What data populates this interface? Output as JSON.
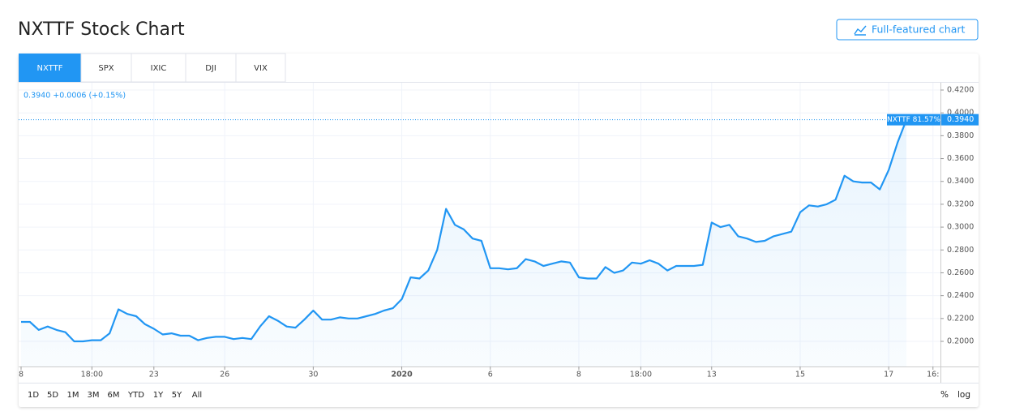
{
  "page": {
    "title": "NXTTF Stock Chart",
    "button": "Full-featured chart",
    "tabs": [
      "NXTTF",
      "SPX",
      "IXIC",
      "DJI",
      "VIX"
    ],
    "ranges": [
      "1D",
      "5D",
      "1M",
      "3M",
      "6M",
      "YTD",
      "1Y",
      "5Y",
      "All"
    ],
    "scale_options": [
      "%",
      "log"
    ]
  },
  "chart_data": {
    "type": "line",
    "legend_text": "0.3940 +0.0006 (+0.15%)",
    "badge": "NXTTF 81.57%",
    "price_line": {
      "value": 0.394,
      "label": "0.3940"
    },
    "color": "#2196f3",
    "categories": [
      "8",
      null,
      null,
      null,
      null,
      null,
      null,
      null,
      "18:00",
      null,
      null,
      null,
      null,
      null,
      null,
      "23",
      null,
      null,
      null,
      null,
      null,
      null,
      null,
      "26",
      null,
      null,
      null,
      null,
      null,
      null,
      null,
      null,
      null,
      "30",
      null,
      null,
      null,
      null,
      null,
      null,
      null,
      null,
      null,
      "2020",
      null,
      null,
      null,
      null,
      null,
      null,
      null,
      null,
      null,
      "6",
      null,
      null,
      null,
      null,
      null,
      null,
      null,
      null,
      null,
      "8",
      null,
      null,
      null,
      null,
      null,
      null,
      "18:00",
      null,
      null,
      null,
      null,
      null,
      null,
      null,
      "13",
      null,
      null,
      null,
      null,
      null,
      null,
      null,
      null,
      null,
      "15",
      null,
      null,
      null,
      null,
      null,
      null,
      null,
      null,
      null,
      "17",
      null,
      null,
      null,
      null,
      "16:"
    ],
    "values": [
      0.217,
      0.217,
      0.21,
      0.213,
      0.21,
      0.208,
      0.2,
      0.2,
      0.201,
      0.201,
      0.207,
      0.228,
      0.224,
      0.222,
      0.215,
      0.211,
      0.206,
      0.207,
      0.205,
      0.205,
      0.201,
      0.203,
      0.204,
      0.204,
      0.202,
      0.203,
      0.202,
      0.213,
      0.222,
      0.218,
      0.213,
      0.212,
      0.219,
      0.227,
      0.219,
      0.219,
      0.221,
      0.22,
      0.22,
      0.222,
      0.224,
      0.227,
      0.229,
      0.237,
      0.256,
      0.255,
      0.262,
      0.28,
      0.316,
      0.302,
      0.298,
      0.29,
      0.288,
      0.264,
      0.264,
      0.263,
      0.264,
      0.272,
      0.27,
      0.266,
      0.268,
      0.27,
      0.269,
      0.256,
      0.255,
      0.255,
      0.265,
      0.26,
      0.262,
      0.269,
      0.268,
      0.271,
      0.268,
      0.262,
      0.266,
      0.266,
      0.266,
      0.267,
      0.304,
      0.3,
      0.302,
      0.292,
      0.29,
      0.287,
      0.288,
      0.292,
      0.294,
      0.296,
      0.313,
      0.319,
      0.318,
      0.32,
      0.324,
      0.345,
      0.34,
      0.339,
      0.339,
      0.333,
      0.35,
      0.374,
      0.394,
      null,
      null,
      null
    ],
    "bold_categories": [
      "2020"
    ],
    "ylim": [
      0.178,
      0.4264
    ],
    "yticks": [
      {
        "value": 0.2,
        "label": "0.2000"
      },
      {
        "value": 0.22,
        "label": "0.2200"
      },
      {
        "value": 0.24,
        "label": "0.2400"
      },
      {
        "value": 0.26,
        "label": "0.2600"
      },
      {
        "value": 0.28,
        "label": "0.2800"
      },
      {
        "value": 0.3,
        "label": "0.3000"
      },
      {
        "value": 0.32,
        "label": "0.3200"
      },
      {
        "value": 0.34,
        "label": "0.3400"
      },
      {
        "value": 0.36,
        "label": "0.3600"
      },
      {
        "value": 0.38,
        "label": "0.3800"
      },
      {
        "value": 0.4,
        "label": "0.4000"
      },
      {
        "value": 0.42,
        "label": "0.4200"
      }
    ],
    "grid": true
  }
}
